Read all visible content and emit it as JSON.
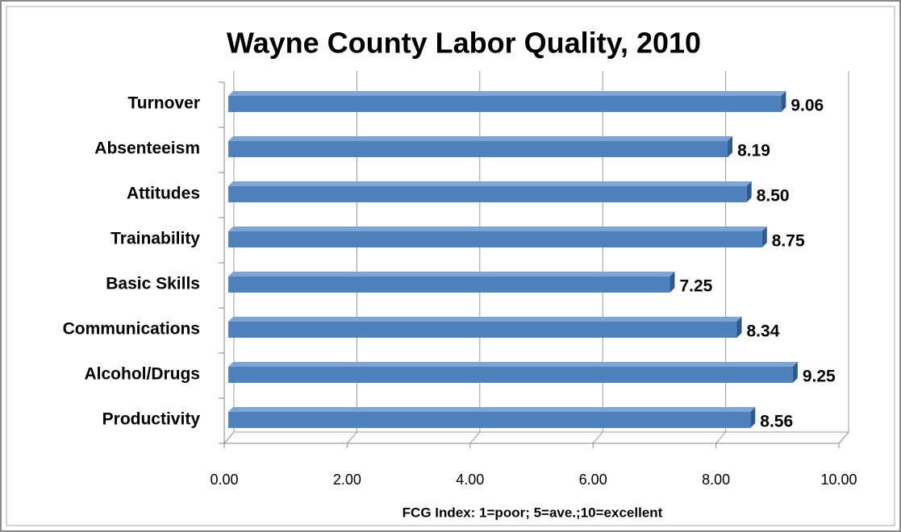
{
  "chart_data": {
    "type": "bar",
    "orientation": "horizontal",
    "title": "Wayne County Labor Quality, 2010",
    "x_label": "FCG Index: 1=poor; 5=ave.;10=excellent",
    "categories": [
      "Turnover",
      "Absenteeism",
      "Attitudes",
      "Trainability",
      "Basic Skills",
      "Communications",
      "Alcohol/Drugs",
      "Productivity"
    ],
    "values": [
      9.06,
      8.19,
      8.5,
      8.75,
      7.25,
      8.34,
      9.25,
      8.56
    ],
    "value_labels": [
      "9.06",
      "8.19",
      "8.50",
      "8.75",
      "7.25",
      "8.34",
      "9.25",
      "8.56"
    ],
    "color": "#4f81bd",
    "xlim": [
      0,
      10
    ],
    "xticks": [
      {
        "value": 0,
        "label": "0.00"
      },
      {
        "value": 2,
        "label": "2.00"
      },
      {
        "value": 4,
        "label": "4.00"
      },
      {
        "value": 6,
        "label": "6.00"
      },
      {
        "value": 8,
        "label": "8.00"
      },
      {
        "value": 10,
        "label": "10.00"
      }
    ],
    "grid": true
  }
}
